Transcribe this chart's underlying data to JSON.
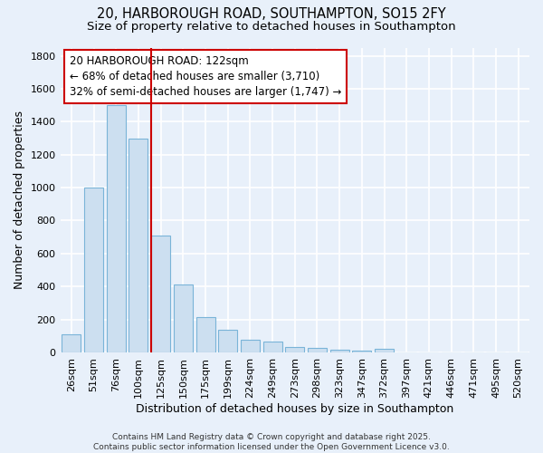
{
  "title_line1": "20, HARBOROUGH ROAD, SOUTHAMPTON, SO15 2FY",
  "title_line2": "Size of property relative to detached houses in Southampton",
  "xlabel": "Distribution of detached houses by size in Southampton",
  "ylabel": "Number of detached properties",
  "categories": [
    "26sqm",
    "51sqm",
    "76sqm",
    "100sqm",
    "125sqm",
    "150sqm",
    "175sqm",
    "199sqm",
    "224sqm",
    "249sqm",
    "273sqm",
    "298sqm",
    "323sqm",
    "347sqm",
    "372sqm",
    "397sqm",
    "421sqm",
    "446sqm",
    "471sqm",
    "495sqm",
    "520sqm"
  ],
  "values": [
    110,
    1000,
    1500,
    1300,
    710,
    410,
    215,
    135,
    75,
    65,
    35,
    30,
    15,
    10,
    20,
    0,
    0,
    0,
    0,
    0,
    0
  ],
  "bar_color": "#ccdff0",
  "bar_edge_color": "#7ab4d8",
  "annotation_line1": "20 HARBOROUGH ROAD: 122sqm",
  "annotation_line2": "← 68% of detached houses are smaller (3,710)",
  "annotation_line3": "32% of semi-detached houses are larger (1,747) →",
  "annotation_box_color": "white",
  "annotation_border_color": "#cc0000",
  "red_line_index": 4,
  "ylim": [
    0,
    1850
  ],
  "yticks": [
    0,
    200,
    400,
    600,
    800,
    1000,
    1200,
    1400,
    1600,
    1800
  ],
  "footer_text": "Contains HM Land Registry data © Crown copyright and database right 2025.\nContains public sector information licensed under the Open Government Licence v3.0.",
  "bg_color": "#e8f0fa",
  "grid_color": "white",
  "title_fontsize": 10.5,
  "subtitle_fontsize": 9.5,
  "axis_label_fontsize": 9,
  "tick_fontsize": 8,
  "annotation_fontsize": 8.5,
  "footer_fontsize": 6.5
}
